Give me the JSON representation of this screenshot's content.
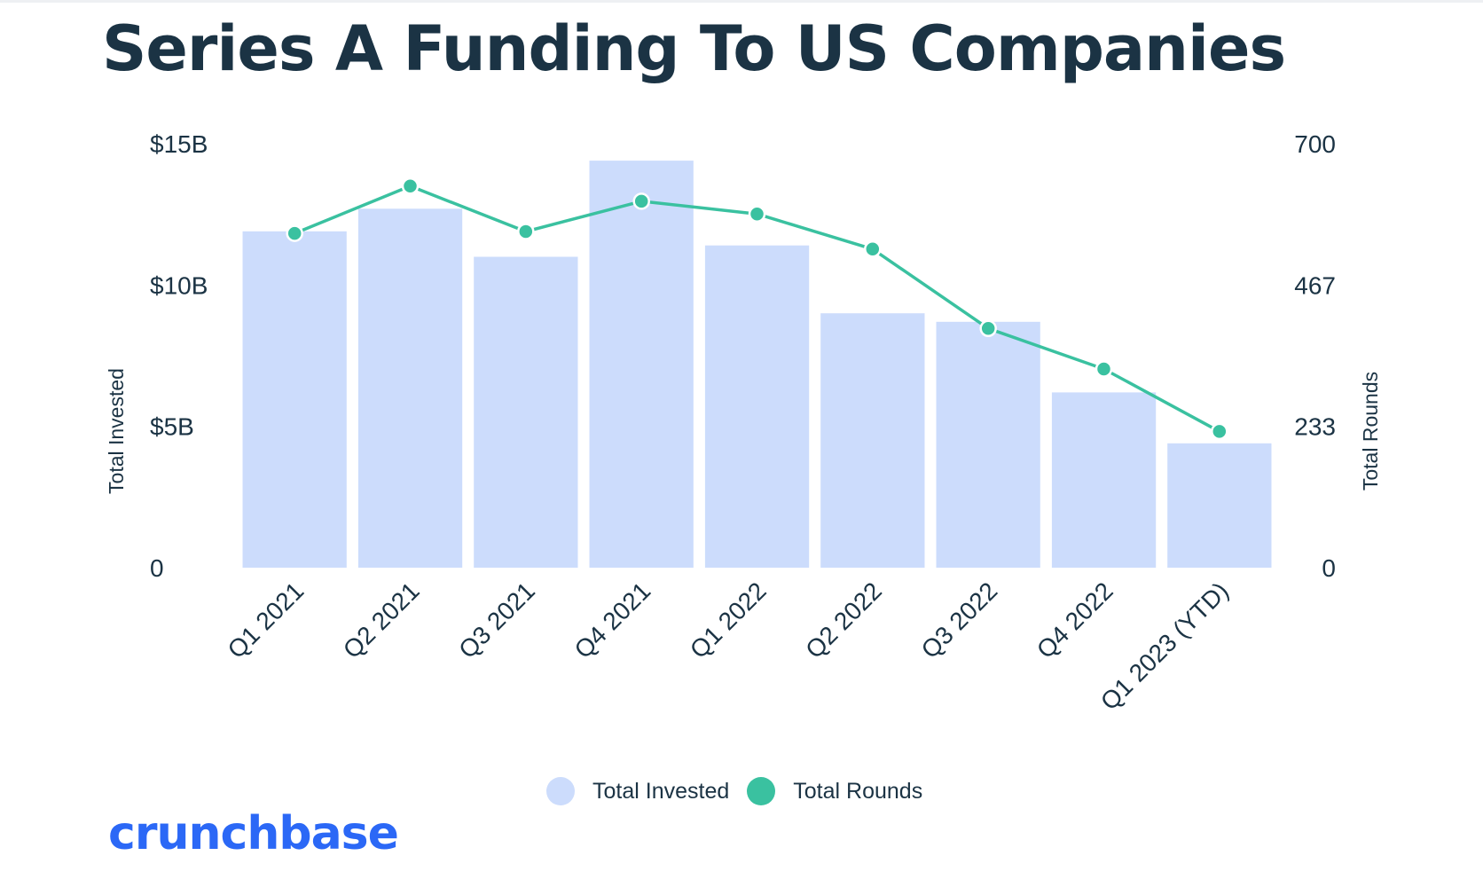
{
  "title": "Series A Funding To US Companies",
  "colors": {
    "title": "#1b3344",
    "bar": "#ccdcfc",
    "line": "#3ac1a0",
    "brand": "#2b68f6"
  },
  "legend": {
    "items": [
      {
        "label": "Total Invested",
        "color": "#ccdcfc",
        "shape": "circle"
      },
      {
        "label": "Total Rounds",
        "color": "#3ac1a0",
        "shape": "circle"
      }
    ]
  },
  "brand": {
    "name": "crunchbase"
  },
  "chart_data": {
    "type": "bar",
    "categories": [
      "Q1 2021",
      "Q2 2021",
      "Q3 2021",
      "Q4 2021",
      "Q1 2022",
      "Q2 2022",
      "Q3 2022",
      "Q4 2022",
      "Q1 2023 (YTD)"
    ],
    "series": [
      {
        "name": "Total Invested",
        "type": "bar",
        "axis": "left",
        "unit": "USD billions",
        "values": [
          11.9,
          12.7,
          11.0,
          14.4,
          11.4,
          9.0,
          8.7,
          6.2,
          4.4
        ]
      },
      {
        "name": "Total Rounds",
        "type": "line",
        "axis": "right",
        "values": [
          552,
          630,
          555,
          605,
          584,
          526,
          395,
          328,
          225
        ]
      }
    ],
    "y_left": {
      "label": "Total Invested",
      "ylim": [
        0,
        15
      ],
      "ticks": [
        0,
        5,
        10,
        15
      ],
      "tick_labels": [
        "0",
        "$5B",
        "$10B",
        "$15B"
      ]
    },
    "y_right": {
      "label": "Total Rounds",
      "ylim": [
        0,
        700
      ],
      "ticks": [
        0,
        233.33,
        466.67,
        700
      ],
      "tick_labels": [
        "0",
        "233",
        "467",
        "700"
      ]
    },
    "xlabel": "",
    "grid": false,
    "legend_position": "bottom-center"
  }
}
